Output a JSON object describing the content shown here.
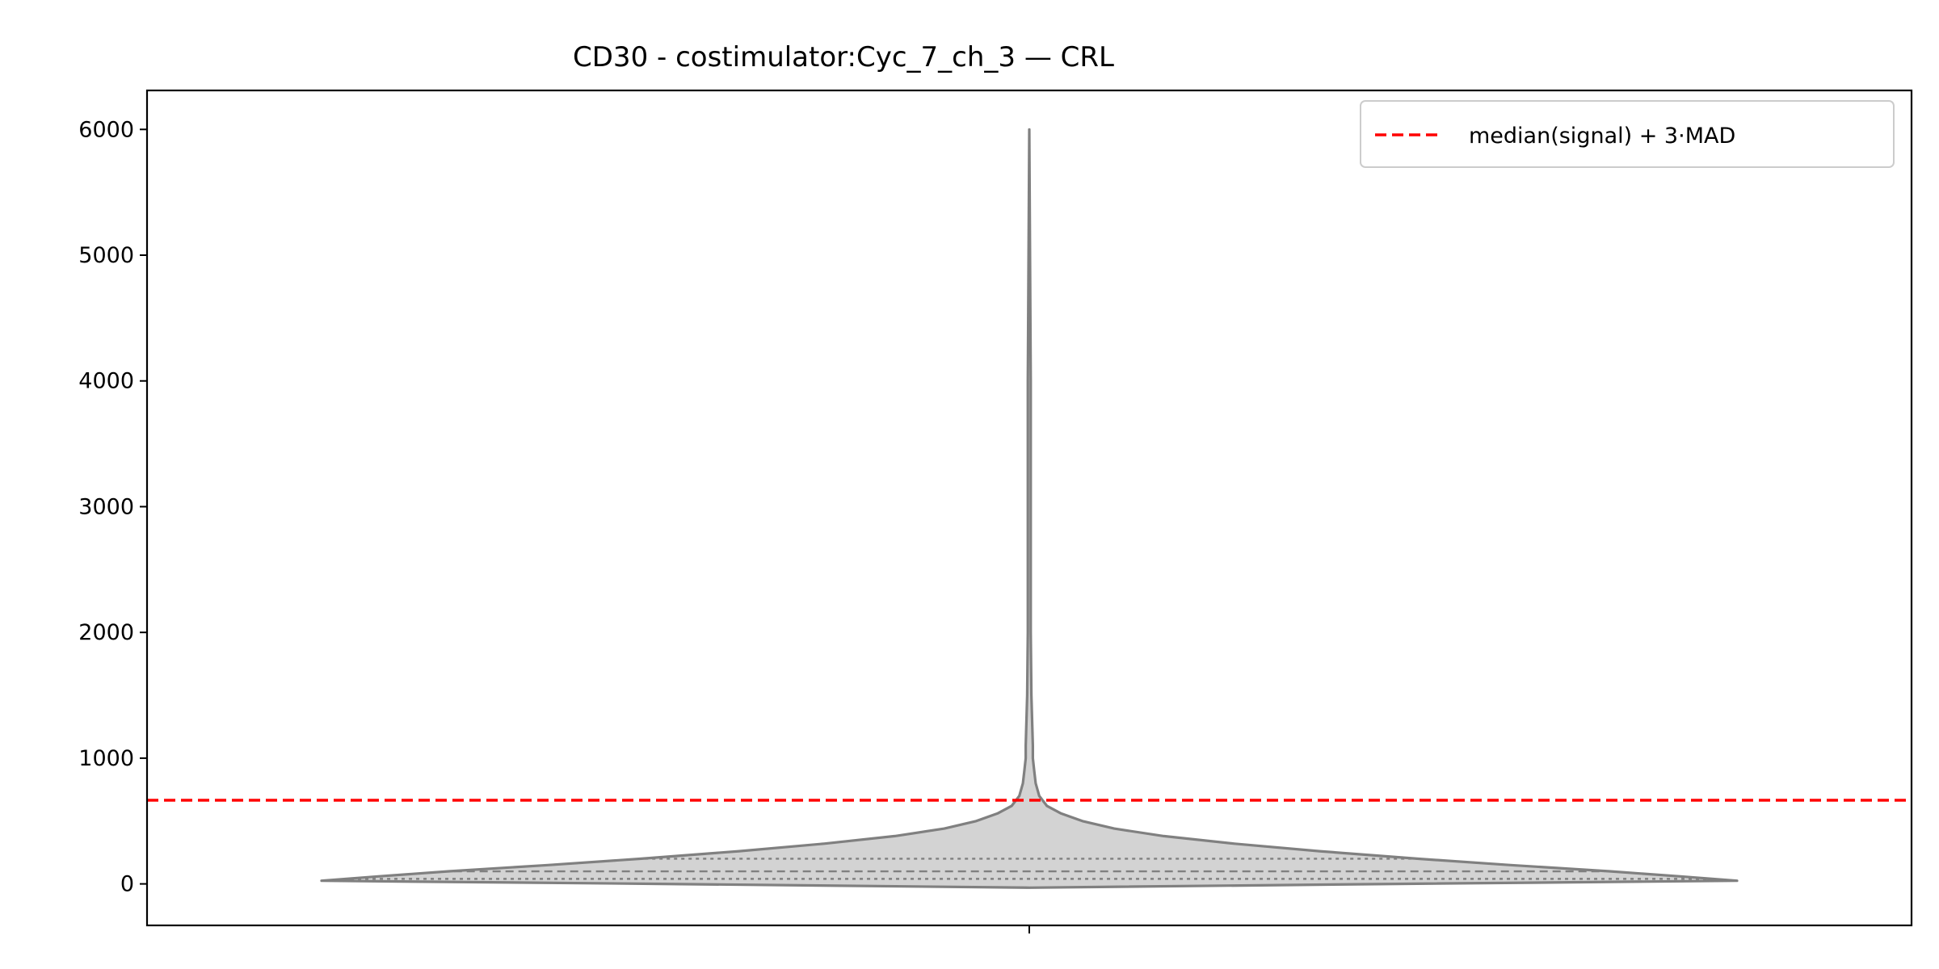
{
  "chart_data": {
    "type": "violin",
    "title": "CD30 - costimulator:Cyc_7_ch_3 — CRL",
    "xlabel": "",
    "ylabel": "",
    "ylim": [
      -330,
      6310
    ],
    "yticks": [
      0,
      1000,
      2000,
      3000,
      4000,
      5000,
      6000
    ],
    "grid": false,
    "legend_position": "top-right",
    "violin": {
      "min": -30,
      "max": 6000,
      "quartiles": {
        "q1": 40,
        "median": 100,
        "q3": 200
      },
      "density_profile": [
        [
          -30,
          0.0
        ],
        [
          0,
          0.52
        ],
        [
          25,
          1.0
        ],
        [
          60,
          0.92
        ],
        [
          100,
          0.82
        ],
        [
          150,
          0.68
        ],
        [
          200,
          0.55
        ],
        [
          260,
          0.41
        ],
        [
          320,
          0.29
        ],
        [
          380,
          0.19
        ],
        [
          440,
          0.12
        ],
        [
          500,
          0.075
        ],
        [
          560,
          0.045
        ],
        [
          620,
          0.025
        ],
        [
          700,
          0.014
        ],
        [
          800,
          0.009
        ],
        [
          900,
          0.007
        ],
        [
          1000,
          0.005
        ],
        [
          1100,
          0.005
        ],
        [
          1300,
          0.004
        ],
        [
          1500,
          0.003
        ],
        [
          2000,
          0.002
        ],
        [
          4000,
          0.002
        ],
        [
          6000,
          0.0
        ]
      ],
      "fill_color": "#d3d3d3",
      "edge_color": "#808080"
    },
    "threshold": {
      "value": 665,
      "label": "median(signal) + 3·MAD",
      "color": "#ff0000",
      "style": "dashed"
    }
  }
}
